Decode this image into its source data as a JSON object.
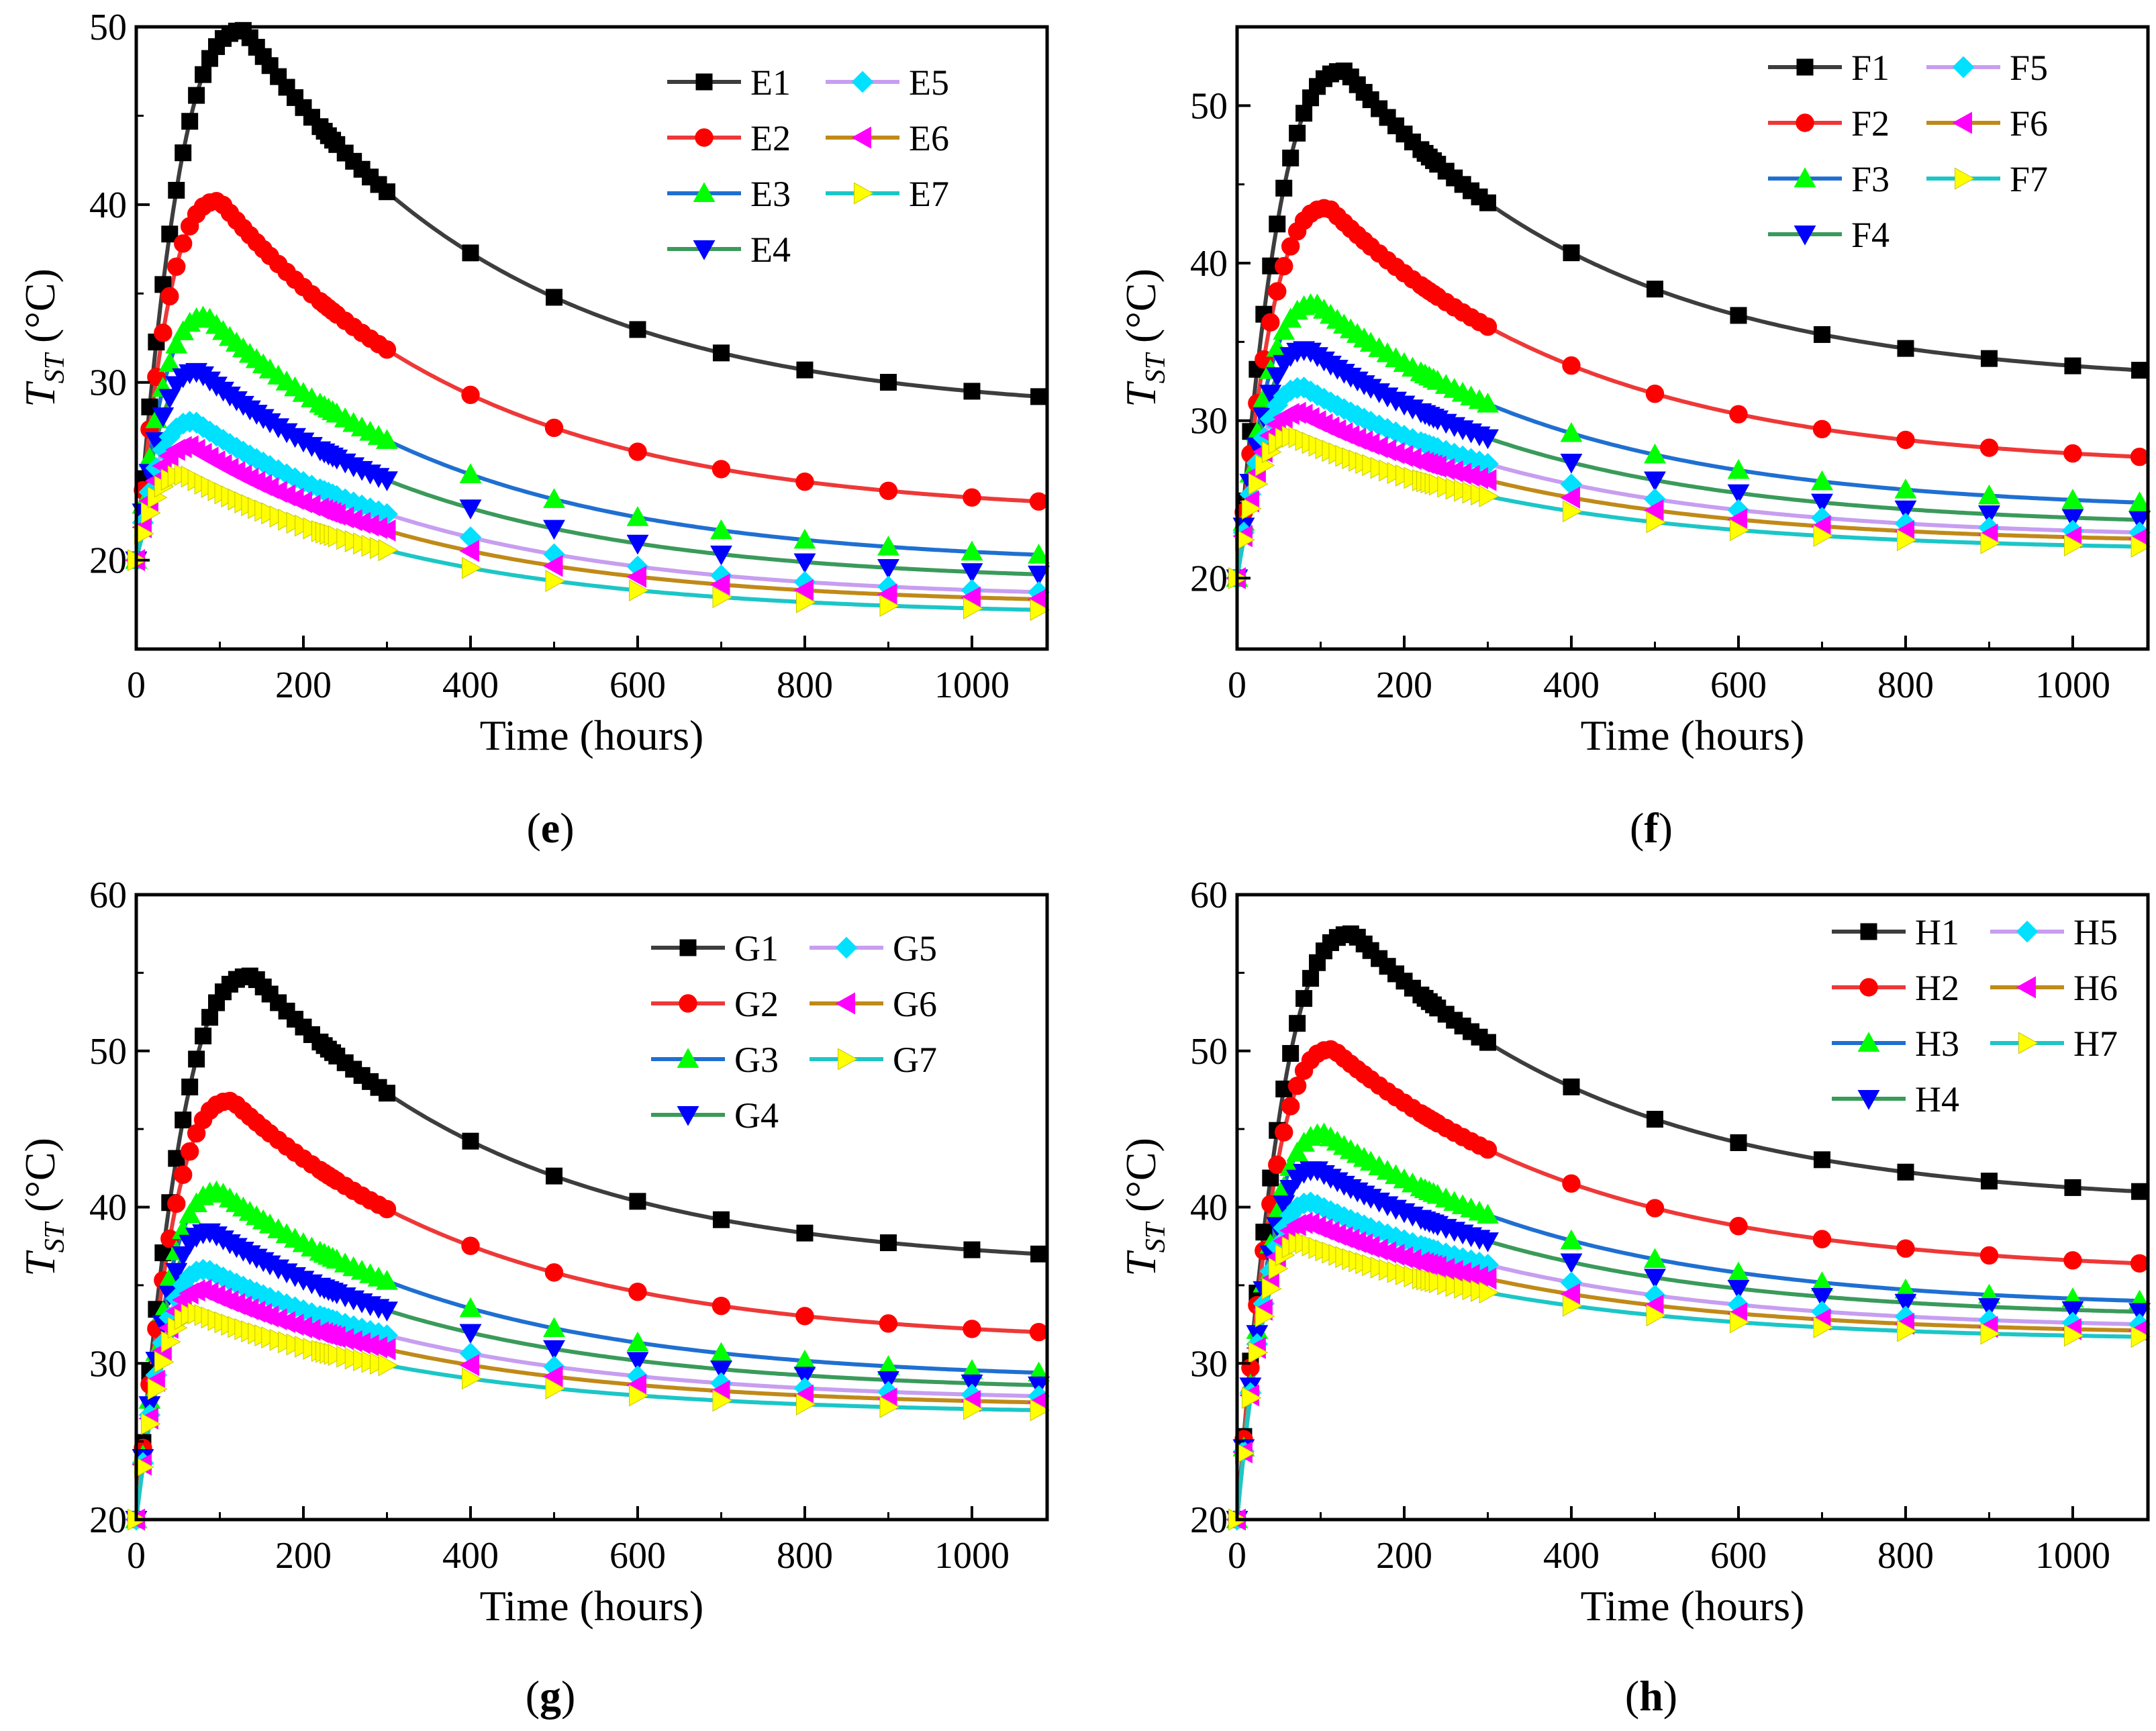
{
  "figure": {
    "x_axis_label": "Time (hours)",
    "y_axis_label_main": "T",
    "y_axis_label_sub": "ST",
    "y_axis_label_unit": "(°C)",
    "series_colors": [
      "#000000",
      "#ff0000",
      "#0000ff",
      "#1a8a1a",
      "#9a58ff",
      "#ff00ff",
      "#00c0e0",
      "#ffff00"
    ],
    "line_colors": [
      "#3d3d3d",
      "#ee3838",
      "#1f6fd1",
      "#3a9a5a",
      "#c79ef0",
      "#c08a18",
      "#1cc6c6"
    ]
  },
  "chart_data": [
    {
      "type": "line",
      "panel_label": "e",
      "xlabel": "Time (hours)",
      "ylabel": "T_ST (°C)",
      "xlim": [
        0,
        1090
      ],
      "ylim": [
        15,
        50
      ],
      "xticks": [
        0,
        200,
        400,
        600,
        800,
        1000
      ],
      "yticks": [
        20,
        30,
        40,
        50
      ],
      "legend": [
        "E1",
        "E2",
        "E3",
        "E4",
        "E5",
        "E6",
        "E7"
      ],
      "series": [
        {
          "name": "E1",
          "peak_time": 130,
          "peak": 49.8,
          "end": 29.2
        },
        {
          "name": "E2",
          "peak_time": 100,
          "peak": 40.2,
          "end": 23.3
        },
        {
          "name": "E3",
          "peak_time": 85,
          "peak": 33.7,
          "end": 20.3
        },
        {
          "name": "E4",
          "peak_time": 75,
          "peak": 30.6,
          "end": 19.2
        },
        {
          "name": "E5",
          "peak_time": 70,
          "peak": 27.8,
          "end": 18.2
        },
        {
          "name": "E6",
          "peak_time": 65,
          "peak": 26.4,
          "end": 17.8
        },
        {
          "name": "E7",
          "peak_time": 60,
          "peak": 24.8,
          "end": 17.2
        }
      ]
    },
    {
      "type": "line",
      "panel_label": "f",
      "xlabel": "Time (hours)",
      "ylabel": "T_ST (°C)",
      "xlim": [
        0,
        1090
      ],
      "ylim": [
        15.5,
        55
      ],
      "xticks": [
        0,
        200,
        400,
        600,
        800,
        1000
      ],
      "yticks": [
        20,
        30,
        40,
        50
      ],
      "legend": [
        "F1",
        "F2",
        "F3",
        "F4",
        "F5",
        "F6",
        "F7"
      ],
      "series": [
        {
          "name": "F1",
          "peak_time": 130,
          "peak": 52.2,
          "end": 33.2
        },
        {
          "name": "F2",
          "peak_time": 110,
          "peak": 43.5,
          "end": 27.7
        },
        {
          "name": "F3",
          "peak_time": 95,
          "peak": 37.4,
          "end": 24.8
        },
        {
          "name": "F4",
          "peak_time": 85,
          "peak": 34.5,
          "end": 23.7
        },
        {
          "name": "F5",
          "peak_time": 80,
          "peak": 32.1,
          "end": 22.9
        },
        {
          "name": "F6",
          "peak_time": 75,
          "peak": 30.5,
          "end": 22.5
        },
        {
          "name": "F7",
          "peak_time": 70,
          "peak": 29.0,
          "end": 22.0
        }
      ]
    },
    {
      "type": "line",
      "panel_label": "g",
      "xlabel": "Time (hours)",
      "ylabel": "T_ST (°C)",
      "xlim": [
        0,
        1090
      ],
      "ylim": [
        20,
        60
      ],
      "xticks": [
        0,
        200,
        400,
        600,
        800,
        1000
      ],
      "yticks": [
        20,
        30,
        40,
        50,
        60
      ],
      "legend": [
        "G1",
        "G2",
        "G3",
        "G4",
        "G5",
        "G6",
        "G7"
      ],
      "series": [
        {
          "name": "G1",
          "peak_time": 140,
          "peak": 54.8,
          "end": 37.0
        },
        {
          "name": "G2",
          "peak_time": 115,
          "peak": 46.8,
          "end": 32.0
        },
        {
          "name": "G3",
          "peak_time": 100,
          "peak": 41.0,
          "end": 29.4
        },
        {
          "name": "G4",
          "peak_time": 90,
          "peak": 38.4,
          "end": 28.6
        },
        {
          "name": "G5",
          "peak_time": 85,
          "peak": 36.0,
          "end": 27.9
        },
        {
          "name": "G6",
          "peak_time": 80,
          "peak": 34.7,
          "end": 27.5
        },
        {
          "name": "G7",
          "peak_time": 75,
          "peak": 33.2,
          "end": 27.0
        }
      ]
    },
    {
      "type": "line",
      "panel_label": "h",
      "xlabel": "Time (hours)",
      "ylabel": "T_ST (°C)",
      "xlim": [
        0,
        1090
      ],
      "ylim": [
        20,
        60
      ],
      "xticks": [
        0,
        200,
        400,
        600,
        800,
        1000
      ],
      "yticks": [
        20,
        30,
        40,
        50,
        60
      ],
      "legend": [
        "H1",
        "H2",
        "H3",
        "H4",
        "H5",
        "H6",
        "H7"
      ],
      "series": [
        {
          "name": "H1",
          "peak_time": 140,
          "peak": 57.5,
          "end": 41.0
        },
        {
          "name": "H2",
          "peak_time": 115,
          "peak": 50.1,
          "end": 36.4
        },
        {
          "name": "H3",
          "peak_time": 105,
          "peak": 44.7,
          "end": 34.0
        },
        {
          "name": "H4",
          "peak_time": 95,
          "peak": 42.4,
          "end": 33.3
        },
        {
          "name": "H5",
          "peak_time": 90,
          "peak": 40.3,
          "end": 32.5
        },
        {
          "name": "H6",
          "peak_time": 85,
          "peak": 39.0,
          "end": 32.1
        },
        {
          "name": "H7",
          "peak_time": 80,
          "peak": 37.7,
          "end": 31.7
        }
      ]
    }
  ]
}
